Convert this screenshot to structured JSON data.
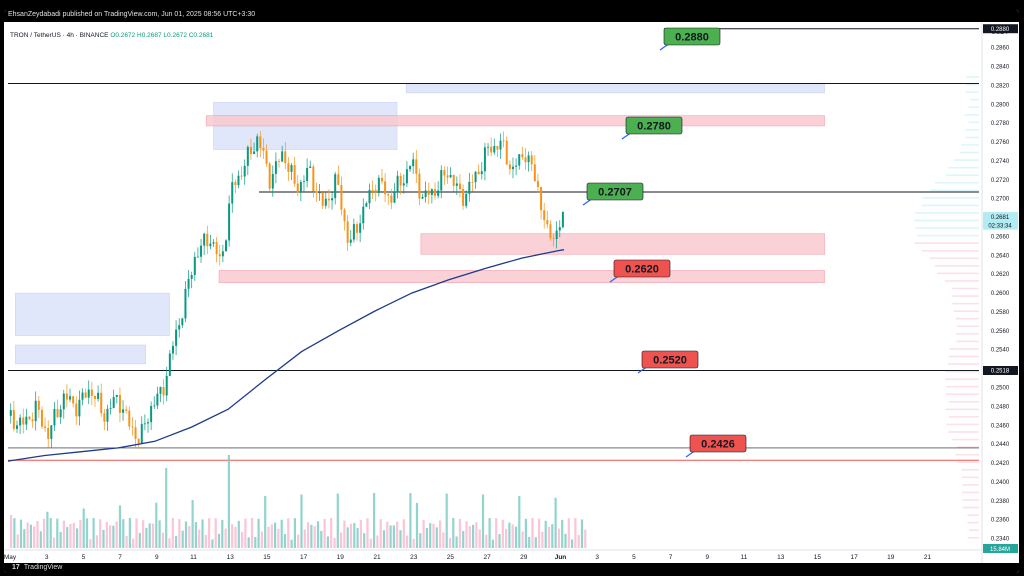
{
  "header": {
    "publisher": "EhsanZeydabadi published on TradingView.com, Jun 01, 2025 08:56 UTC+3:30",
    "symbol": "TRON / TetherUS · 4h · BINANCE",
    "ohlc": "O0.2672 H0.2687 L0.2672 C0.2681"
  },
  "footer": {
    "logo_mark": "17",
    "logo_text": "TradingView"
  },
  "colors": {
    "up": "#089981",
    "down": "#f7931a",
    "ma": "#1e3a8a",
    "support": "#ef5350",
    "resistance_label": "#4caf50",
    "blue_zone": "#dbe3fb",
    "red_zone": "#f8c9cf"
  },
  "chart_data": {
    "type": "line",
    "currency": "USDT",
    "y_ticks": [
      "0.2880",
      "0.2860",
      "0.2840",
      "0.2820",
      "0.2800",
      "0.2780",
      "0.2760",
      "0.2740",
      "0.2720",
      "0.2700",
      "0.2680",
      "0.2660",
      "0.2640",
      "0.2620",
      "0.2600",
      "0.2580",
      "0.2560",
      "0.2540",
      "0.2520",
      "0.2500",
      "0.2480",
      "0.2460",
      "0.2440",
      "0.2420",
      "0.2400",
      "0.2380",
      "0.2360",
      "0.2340"
    ],
    "x_ticks": [
      "May",
      "3",
      "5",
      "7",
      "9",
      "11",
      "13",
      "15",
      "17",
      "19",
      "21",
      "23",
      "25",
      "27",
      "29",
      "Jun",
      "3",
      "5",
      "7",
      "9",
      "11",
      "13",
      "15",
      "17",
      "19",
      "21"
    ],
    "ylim": [
      0.233,
      0.2885
    ],
    "price_badges": [
      {
        "value": 0.288,
        "text": "0.2880",
        "style": "dark"
      },
      {
        "value": 0.2681,
        "text": "0.2681",
        "style": "teal"
      },
      {
        "value": 0.2672,
        "text": "02:33:34",
        "style": "teal"
      },
      {
        "value": 0.2518,
        "text": "0.2518",
        "style": "dark"
      }
    ],
    "volume_badge": "15.84M",
    "levels": [
      {
        "value": 0.288,
        "text": "0.2880",
        "kind": "resistance"
      },
      {
        "value": 0.278,
        "text": "0.2780",
        "kind": "resistance"
      },
      {
        "value": 0.2707,
        "text": "0.2707",
        "kind": "resistance"
      },
      {
        "value": 0.262,
        "text": "0.2620",
        "kind": "support"
      },
      {
        "value": 0.252,
        "text": "0.2520",
        "kind": "support"
      },
      {
        "value": 0.2426,
        "text": "0.2426",
        "kind": "support"
      }
    ],
    "horizontal_lines": [
      0.288,
      0.2822,
      0.2707,
      0.2518,
      0.2436,
      0.2423
    ],
    "zones": [
      {
        "x0": 0.4,
        "x1": 7.5,
        "y0": 0.2545,
        "y1": 0.2525,
        "color": "blue"
      },
      {
        "x0": 0.4,
        "x1": 8.8,
        "y0": 0.26,
        "y1": 0.2555,
        "color": "blue"
      },
      {
        "x0": 11.2,
        "x1": 21.2,
        "y0": 0.2802,
        "y1": 0.2752,
        "color": "blue"
      },
      {
        "x0": 21.7,
        "x1": 44.5,
        "y0": 0.2822,
        "y1": 0.2812,
        "color": "blue"
      },
      {
        "x0": 10.8,
        "x1": 44.5,
        "y0": 0.2788,
        "y1": 0.2777,
        "color": "red"
      },
      {
        "x0": 22.5,
        "x1": 44.5,
        "y0": 0.2663,
        "y1": 0.2641,
        "color": "red"
      },
      {
        "x0": 11.5,
        "x1": 44.5,
        "y0": 0.2624,
        "y1": 0.2611,
        "color": "red"
      }
    ],
    "moving_average": {
      "x": [
        0,
        2,
        4,
        6,
        8,
        10,
        12,
        14,
        16,
        18,
        20,
        22,
        24,
        26,
        28,
        30,
        30.3
      ],
      "y": [
        0.2422,
        0.2428,
        0.2432,
        0.2436,
        0.2443,
        0.2458,
        0.2477,
        0.2508,
        0.2538,
        0.256,
        0.2581,
        0.26,
        0.2614,
        0.2626,
        0.2637,
        0.2645,
        0.2646
      ]
    },
    "price_path": {
      "x": [
        0,
        0.8,
        1.5,
        2.2,
        3,
        3.8,
        4.5,
        5.2,
        6,
        6.6,
        7.2,
        7.8,
        8.4,
        9,
        9.6,
        10.2,
        11,
        11.6,
        12.2,
        13,
        13.6,
        14.3,
        15,
        15.7,
        16.4,
        17.2,
        17.9,
        18.6,
        19.4,
        20.1,
        20.8,
        21.5,
        22,
        22.6,
        23.3,
        24,
        24.7,
        25.4,
        26.1,
        26.8,
        27.5,
        28.2,
        28.9,
        29.4,
        29.9,
        30.3
      ],
      "y": [
        0.247,
        0.246,
        0.2478,
        0.245,
        0.249,
        0.248,
        0.25,
        0.247,
        0.249,
        0.246,
        0.2445,
        0.248,
        0.2495,
        0.2545,
        0.259,
        0.264,
        0.266,
        0.263,
        0.271,
        0.274,
        0.2765,
        0.272,
        0.275,
        0.271,
        0.273,
        0.269,
        0.272,
        0.265,
        0.269,
        0.272,
        0.27,
        0.272,
        0.274,
        0.27,
        0.271,
        0.273,
        0.27,
        0.272,
        0.275,
        0.276,
        0.273,
        0.275,
        0.271,
        0.266,
        0.2665,
        0.2681
      ]
    }
  }
}
